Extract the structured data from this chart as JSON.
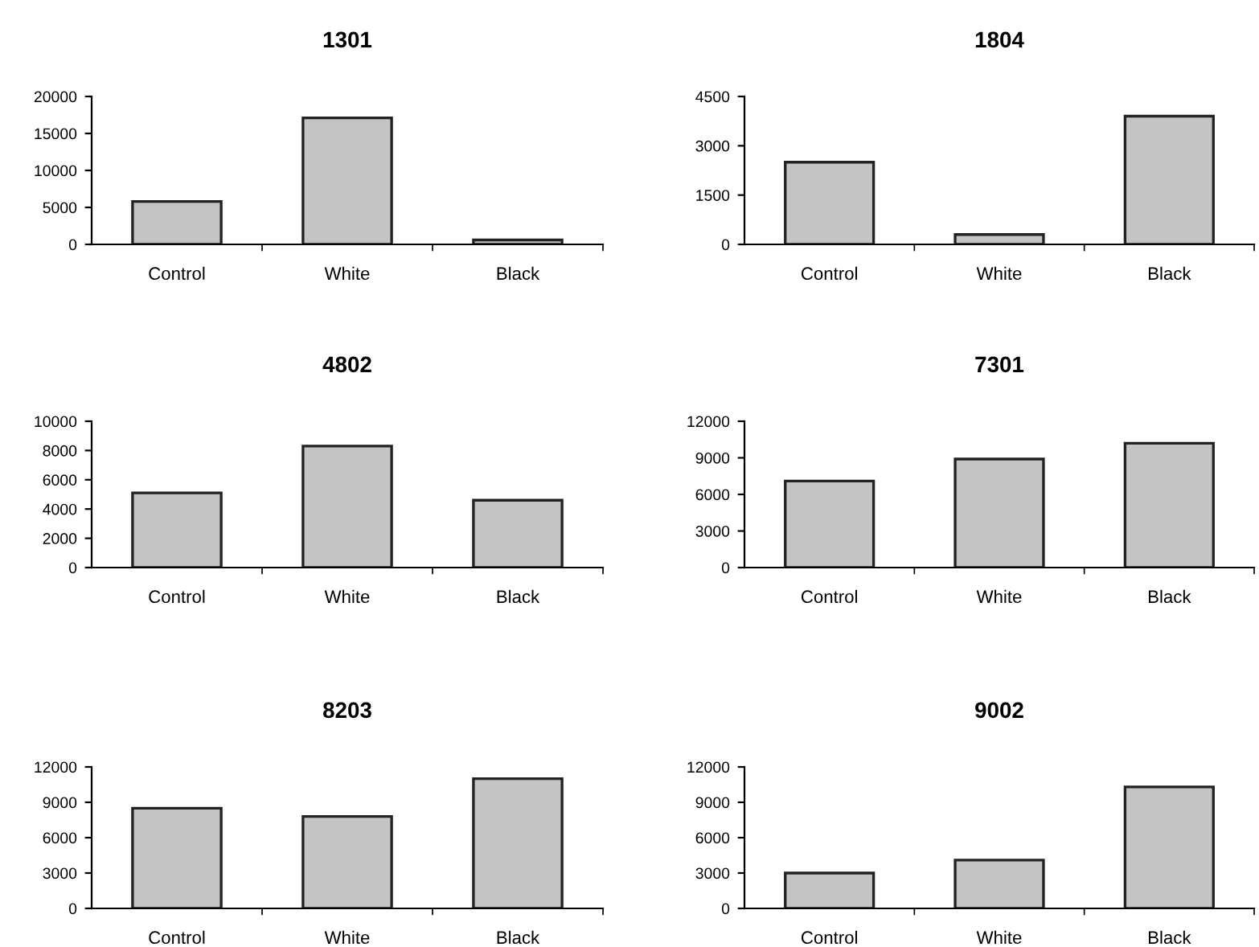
{
  "chart_data": [
    {
      "type": "bar",
      "title": "1301",
      "categories": [
        "Control",
        "White",
        "Black"
      ],
      "values": [
        5800,
        17100,
        600
      ],
      "color": "#c4c4c4",
      "ylim": [
        0,
        20000
      ],
      "yticks": [
        0,
        5000,
        10000,
        15000,
        20000
      ],
      "grid": false
    },
    {
      "type": "bar",
      "title": "1804",
      "categories": [
        "Control",
        "White",
        "Black"
      ],
      "values": [
        2500,
        300,
        3900
      ],
      "color": "#c4c4c4",
      "ylim": [
        0,
        4500
      ],
      "yticks": [
        0,
        1500,
        3000,
        4500
      ],
      "grid": false
    },
    {
      "type": "bar",
      "title": "4802",
      "categories": [
        "Control",
        "White",
        "Black"
      ],
      "values": [
        5100,
        8300,
        4600
      ],
      "color": "#c4c4c4",
      "ylim": [
        0,
        10000
      ],
      "yticks": [
        0,
        2000,
        4000,
        6000,
        8000,
        10000
      ],
      "grid": false
    },
    {
      "type": "bar",
      "title": "7301",
      "categories": [
        "Control",
        "White",
        "Black"
      ],
      "values": [
        7100,
        8900,
        10200
      ],
      "color": "#c4c4c4",
      "ylim": [
        0,
        12000
      ],
      "yticks": [
        0,
        3000,
        6000,
        9000,
        12000
      ],
      "grid": false
    },
    {
      "type": "bar",
      "title": "8203",
      "categories": [
        "Control",
        "White",
        "Black"
      ],
      "values": [
        8500,
        7800,
        11000
      ],
      "color": "#c4c4c4",
      "ylim": [
        0,
        12000
      ],
      "yticks": [
        0,
        3000,
        6000,
        9000,
        12000
      ],
      "grid": false
    },
    {
      "type": "bar",
      "title": "9002",
      "categories": [
        "Control",
        "White",
        "Black"
      ],
      "values": [
        3000,
        4100,
        10300
      ],
      "color": "#c4c4c4",
      "ylim": [
        0,
        12000
      ],
      "yticks": [
        0,
        3000,
        6000,
        9000,
        12000
      ],
      "grid": false
    }
  ]
}
